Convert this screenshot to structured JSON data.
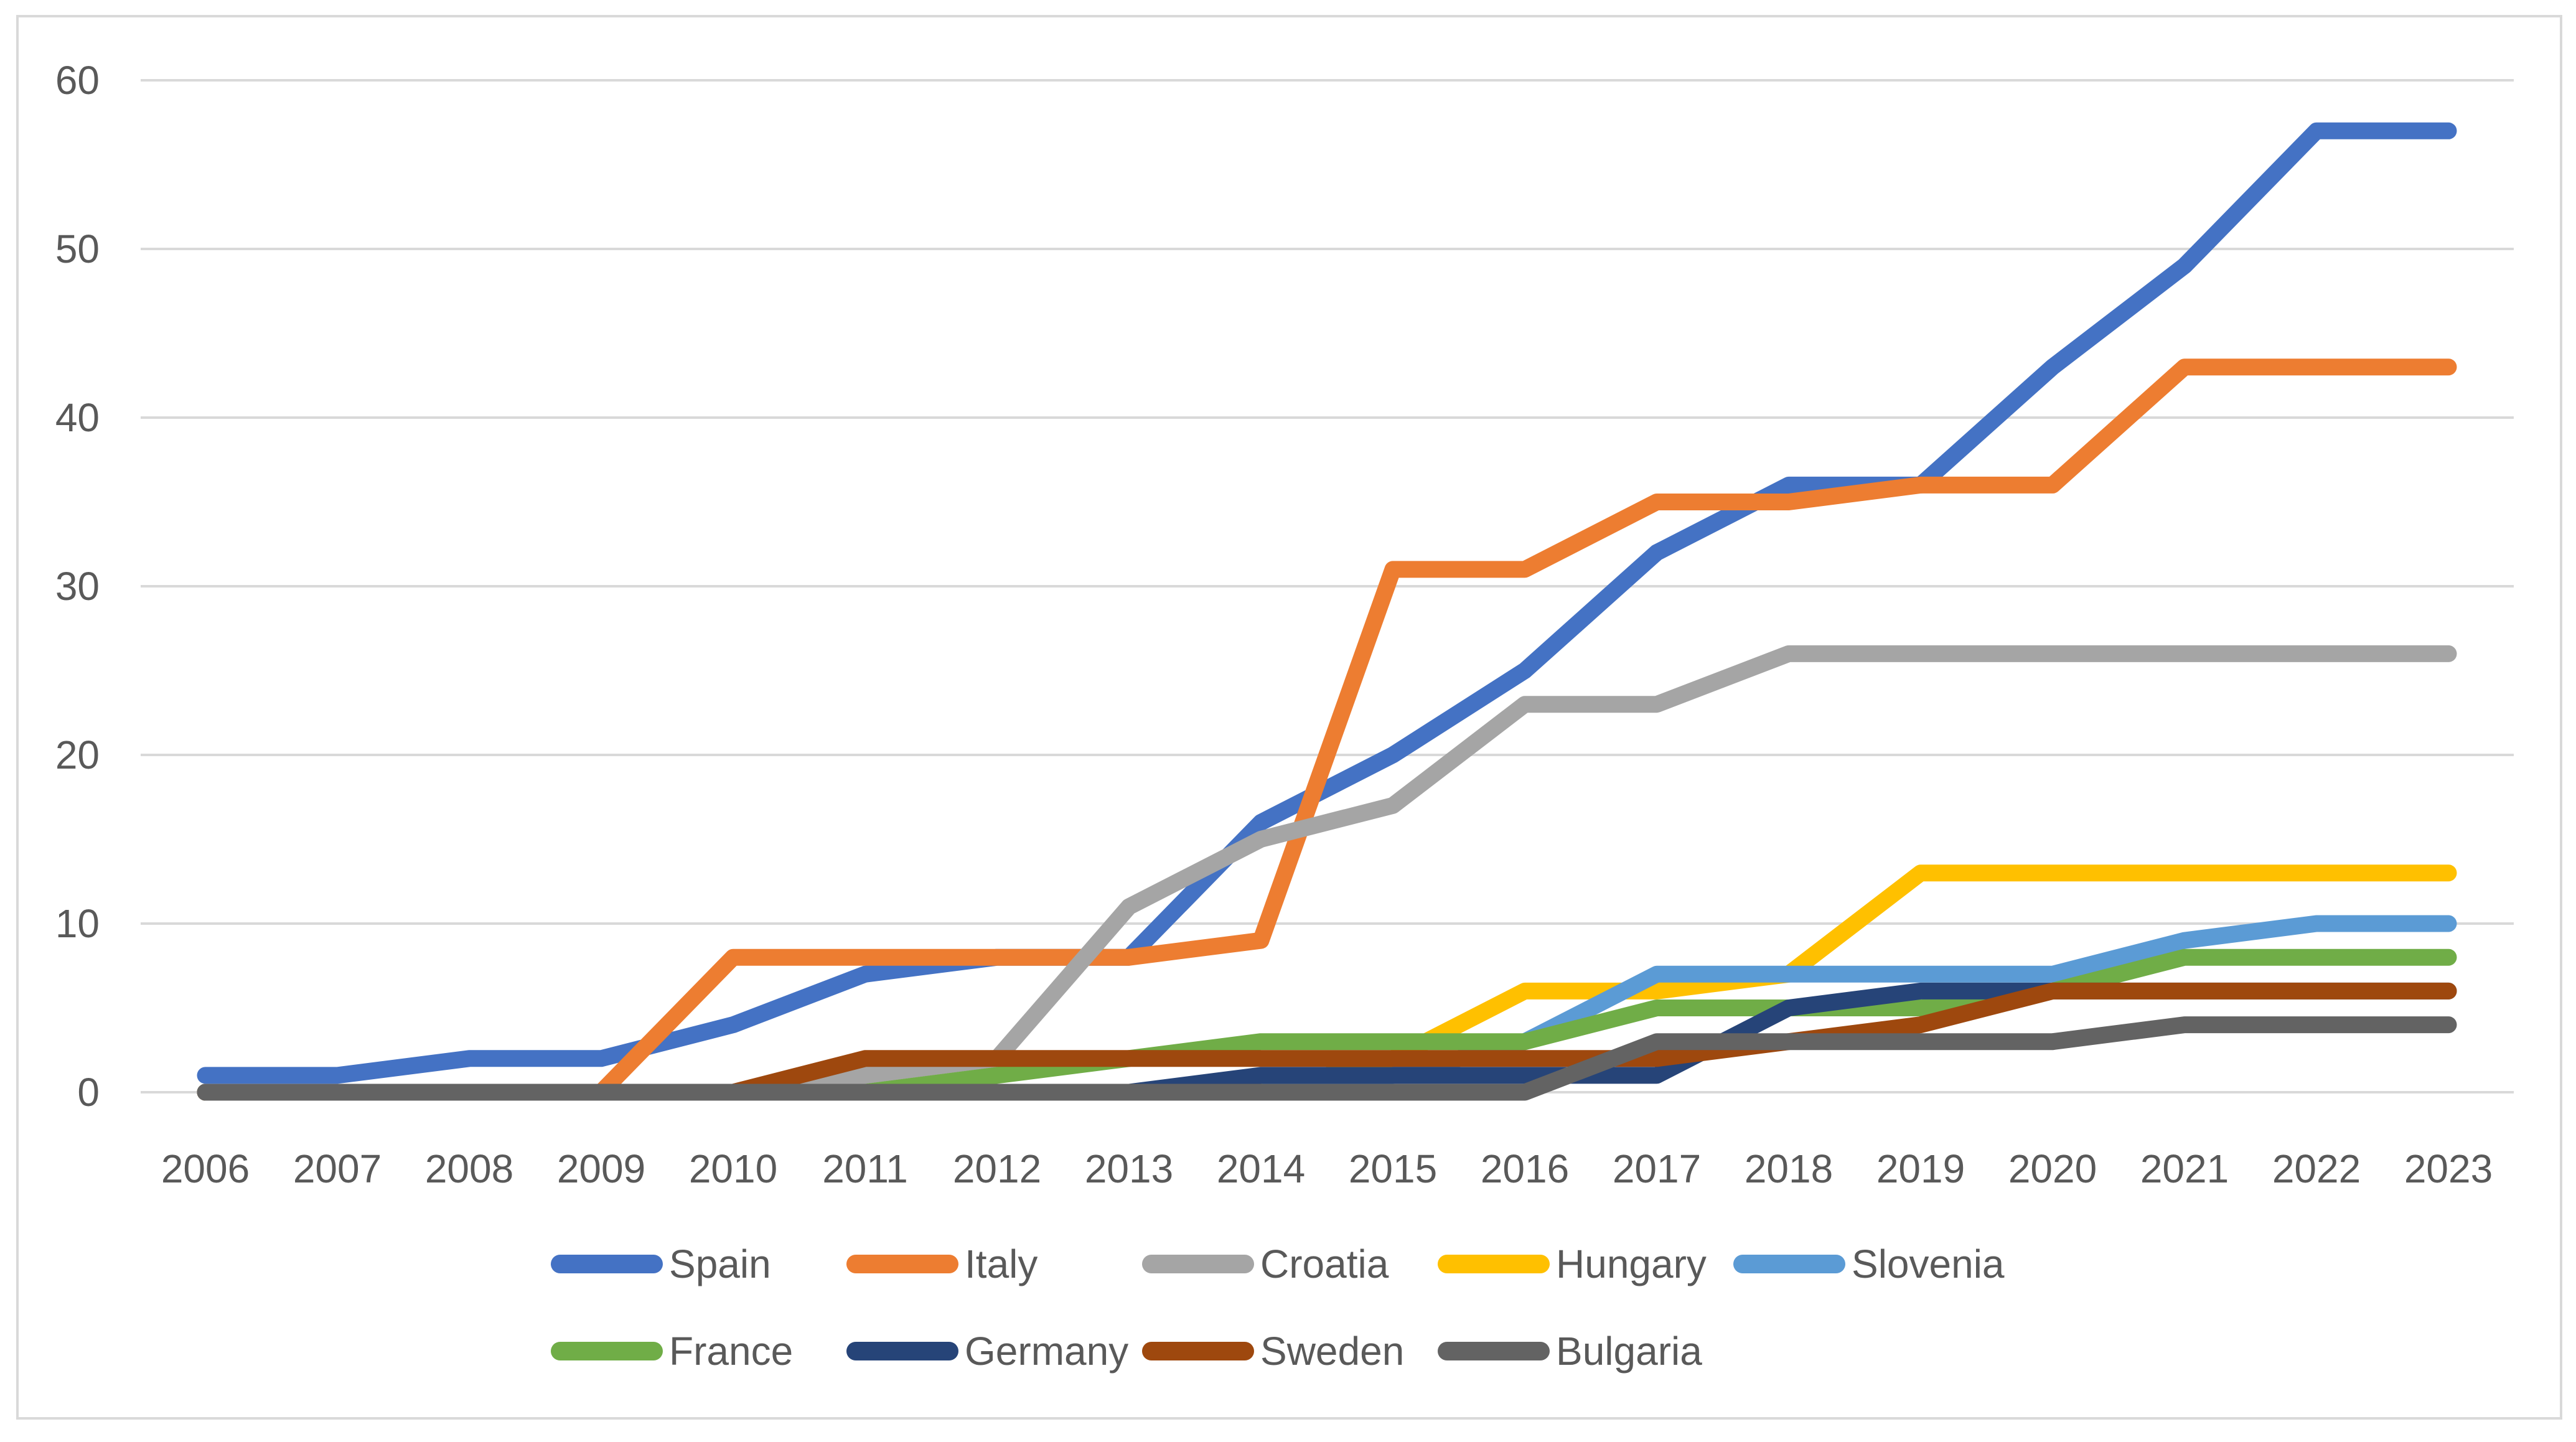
{
  "chart_data": {
    "type": "line",
    "title": "",
    "xlabel": "",
    "ylabel": "",
    "categories": [
      "2006",
      "2007",
      "2008",
      "2009",
      "2010",
      "2011",
      "2012",
      "2013",
      "2014",
      "2015",
      "2016",
      "2017",
      "2018",
      "2019",
      "2020",
      "2021",
      "2022",
      "2023"
    ],
    "ylim": [
      0,
      60
    ],
    "ytick_step": 10,
    "yticks": [
      0,
      10,
      20,
      30,
      40,
      50,
      60
    ],
    "grid": true,
    "legend_position": "bottom",
    "gridline_color": "#D9D9D9",
    "axis_text_color": "#595959",
    "series": [
      {
        "name": "Spain",
        "color": "#4472C4",
        "values": [
          1,
          1,
          2,
          2,
          4,
          7,
          8,
          8,
          16,
          20,
          25,
          32,
          36,
          36,
          43,
          49,
          57,
          57
        ]
      },
      {
        "name": "Italy",
        "color": "#ED7D31",
        "values": [
          0,
          0,
          0,
          0,
          8,
          8,
          8,
          8,
          9,
          31,
          31,
          35,
          35,
          36,
          36,
          43,
          43,
          43
        ]
      },
      {
        "name": "Croatia",
        "color": "#A5A5A5",
        "values": [
          0,
          0,
          0,
          0,
          0,
          1,
          2,
          11,
          15,
          17,
          23,
          23,
          26,
          26,
          26,
          26,
          26,
          26
        ]
      },
      {
        "name": "Hungary",
        "color": "#FFC000",
        "values": [
          0,
          0,
          0,
          0,
          0,
          0,
          0,
          0,
          0,
          2,
          6,
          6,
          7,
          13,
          13,
          13,
          13,
          13
        ]
      },
      {
        "name": "Slovenia",
        "color": "#5B9BD5",
        "values": [
          0,
          0,
          0,
          0,
          0,
          0,
          0,
          0,
          0,
          1,
          3,
          7,
          7,
          7,
          7,
          9,
          10,
          10
        ]
      },
      {
        "name": "France",
        "color": "#70AD47",
        "values": [
          0,
          0,
          0,
          0,
          0,
          0,
          1,
          2,
          3,
          3,
          3,
          5,
          5,
          5,
          6,
          8,
          8,
          8
        ]
      },
      {
        "name": "Germany",
        "color": "#264478",
        "values": [
          0,
          0,
          0,
          0,
          0,
          0,
          0,
          0,
          1,
          1,
          1,
          1,
          5,
          6,
          6,
          6,
          6,
          6
        ]
      },
      {
        "name": "Sweden",
        "color": "#9E480E",
        "values": [
          0,
          0,
          0,
          0,
          0,
          2,
          2,
          2,
          2,
          2,
          2,
          2,
          3,
          4,
          6,
          6,
          6,
          6
        ]
      },
      {
        "name": "Bulgaria",
        "color": "#636363",
        "values": [
          0,
          0,
          0,
          0,
          0,
          0,
          0,
          0,
          0,
          0,
          0,
          3,
          3,
          3,
          3,
          4,
          4,
          4
        ]
      }
    ],
    "legend_row1": [
      "Spain",
      "Italy",
      "Croatia",
      "Hungary",
      "Slovenia"
    ],
    "legend_row2": [
      "France",
      "Germany",
      "Sweden",
      "Bulgaria"
    ]
  }
}
